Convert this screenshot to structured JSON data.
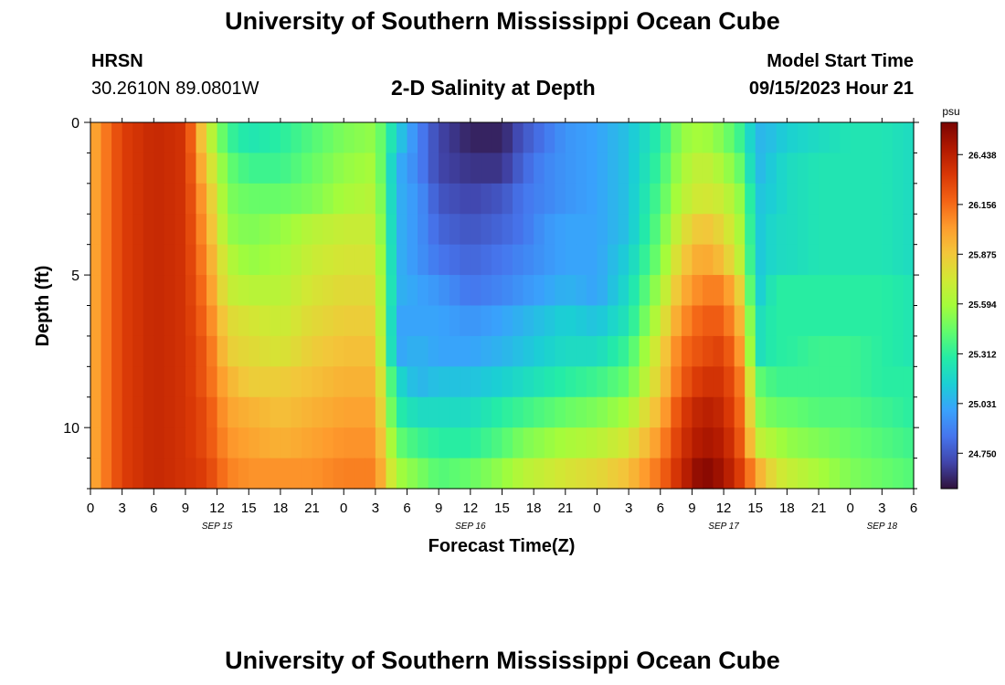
{
  "header": {
    "title": "University of Southern Mississippi Ocean Cube",
    "station": "HRSN",
    "coords": "30.2610N  89.0801W",
    "subtitle": "2-D Salinity at Depth",
    "model_start_label": "Model Start Time",
    "model_start_value": "09/15/2023 Hour 21"
  },
  "footer": {
    "title": "University of Southern Mississippi Ocean Cube"
  },
  "chart_data": {
    "type": "heatmap",
    "title": "2-D Salinity at Depth",
    "xlabel": "Forecast Time(Z)",
    "ylabel": "Depth (ft)",
    "x_range_hours": [
      0,
      78
    ],
    "y_range_ft": [
      0,
      12
    ],
    "x_ticks": [
      "0",
      "3",
      "6",
      "9",
      "12",
      "15",
      "18",
      "21",
      "0",
      "3",
      "6",
      "9",
      "12",
      "15",
      "18",
      "21",
      "0",
      "3",
      "6",
      "9",
      "12",
      "15",
      "18",
      "21",
      "0",
      "3",
      "6"
    ],
    "y_ticks": [
      {
        "label": "0",
        "value": 0
      },
      {
        "label": "5",
        "value": 5
      },
      {
        "label": "10",
        "value": 10
      }
    ],
    "date_labels": [
      {
        "label": "SEP 15",
        "hour": 12
      },
      {
        "label": "SEP 16",
        "hour": 36
      },
      {
        "label": "SEP 17",
        "hour": 60
      },
      {
        "label": "SEP 18",
        "hour": 75
      }
    ],
    "colorbar": {
      "unit": "psu",
      "min": 24.55,
      "max": 26.62,
      "ticks": [
        "26.438",
        "26.156",
        "25.875",
        "25.594",
        "25.312",
        "25.031",
        "24.750"
      ]
    },
    "colors": {
      "scale": [
        "#30123b",
        "#4145ab",
        "#4675ed",
        "#39a2fc",
        "#1bcfd4",
        "#24eca6",
        "#61fc6c",
        "#a4fc3b",
        "#d1e834",
        "#f3c63a",
        "#fe9b2d",
        "#f36315",
        "#d93806",
        "#b11901",
        "#7a0402"
      ]
    },
    "depth_levels_ft": [
      0,
      1,
      2,
      3,
      4,
      5,
      6,
      7,
      8,
      9,
      10,
      11
    ],
    "anchor_hours": [
      0,
      3,
      6,
      9,
      11,
      13,
      15,
      18,
      21,
      24,
      27,
      29,
      31,
      33,
      36,
      39,
      41,
      43,
      45,
      48,
      51,
      54,
      56,
      58,
      60,
      62,
      63,
      65,
      66,
      69,
      72,
      75,
      78
    ],
    "anchor_values": [
      [
        25.95,
        26.3,
        26.4,
        26.35,
        25.75,
        25.35,
        25.25,
        25.3,
        25.4,
        25.5,
        25.55,
        25.15,
        24.9,
        24.7,
        24.6,
        24.6,
        24.75,
        24.85,
        24.95,
        25.0,
        25.1,
        25.3,
        25.55,
        25.6,
        25.5,
        25.3,
        25.05,
        25.1,
        25.15,
        25.2,
        25.25,
        25.25,
        25.2
      ],
      [
        25.95,
        26.3,
        26.4,
        26.35,
        25.85,
        25.45,
        25.35,
        25.35,
        25.45,
        25.55,
        25.6,
        25.05,
        24.9,
        24.7,
        24.65,
        24.65,
        24.8,
        24.9,
        24.95,
        25.0,
        25.1,
        25.35,
        25.6,
        25.7,
        25.6,
        25.4,
        25.05,
        25.15,
        25.2,
        25.25,
        25.25,
        25.25,
        25.2
      ],
      [
        25.95,
        26.3,
        26.4,
        26.35,
        25.95,
        25.5,
        25.45,
        25.45,
        25.5,
        25.6,
        25.65,
        25.05,
        24.95,
        24.75,
        24.7,
        24.75,
        24.85,
        24.9,
        24.95,
        25.0,
        25.1,
        25.4,
        25.65,
        25.75,
        25.7,
        25.5,
        25.1,
        25.15,
        25.2,
        25.25,
        25.25,
        25.25,
        25.2
      ],
      [
        25.95,
        26.3,
        26.4,
        26.35,
        26.0,
        25.55,
        25.5,
        25.55,
        25.65,
        25.7,
        25.7,
        25.05,
        24.95,
        24.8,
        24.75,
        24.8,
        24.85,
        24.95,
        25.0,
        25.0,
        25.1,
        25.45,
        25.75,
        25.9,
        25.8,
        25.55,
        25.1,
        25.2,
        25.2,
        25.25,
        25.25,
        25.25,
        25.2
      ],
      [
        25.95,
        26.3,
        26.4,
        26.35,
        26.05,
        25.65,
        25.55,
        25.6,
        25.7,
        25.75,
        25.75,
        25.05,
        24.95,
        24.85,
        24.8,
        24.85,
        24.9,
        24.95,
        25.0,
        25.0,
        25.15,
        25.5,
        25.85,
        26.0,
        25.9,
        25.6,
        25.1,
        25.2,
        25.2,
        25.25,
        25.25,
        25.25,
        25.2
      ],
      [
        25.95,
        26.3,
        26.4,
        26.35,
        26.1,
        25.7,
        25.65,
        25.65,
        25.75,
        25.8,
        25.8,
        25.05,
        25.0,
        24.95,
        24.85,
        24.9,
        24.95,
        25.0,
        25.05,
        25.0,
        25.2,
        25.6,
        25.95,
        26.1,
        26.1,
        25.75,
        25.1,
        25.3,
        25.3,
        25.3,
        25.3,
        25.3,
        25.25
      ],
      [
        25.95,
        26.3,
        26.4,
        26.35,
        26.15,
        25.8,
        25.75,
        25.7,
        25.8,
        25.85,
        25.85,
        25.0,
        25.0,
        25.0,
        24.95,
        25.0,
        25.05,
        25.1,
        25.15,
        25.1,
        25.25,
        25.7,
        26.05,
        26.2,
        26.2,
        25.85,
        25.2,
        25.3,
        25.3,
        25.3,
        25.3,
        25.3,
        25.25
      ],
      [
        25.95,
        26.3,
        26.4,
        26.35,
        26.2,
        25.85,
        25.8,
        25.75,
        25.85,
        25.9,
        25.9,
        25.0,
        25.05,
        25.0,
        25.0,
        25.05,
        25.1,
        25.15,
        25.2,
        25.2,
        25.35,
        25.8,
        26.15,
        26.25,
        26.3,
        25.95,
        25.2,
        25.3,
        25.3,
        25.35,
        25.35,
        25.3,
        25.25
      ],
      [
        25.95,
        26.3,
        26.4,
        26.35,
        26.2,
        25.95,
        25.85,
        25.85,
        25.9,
        25.95,
        25.95,
        25.2,
        25.05,
        25.1,
        25.1,
        25.15,
        25.2,
        25.25,
        25.3,
        25.35,
        25.45,
        25.85,
        26.2,
        26.35,
        26.35,
        26.05,
        25.45,
        25.35,
        25.35,
        25.35,
        25.35,
        25.3,
        25.3
      ],
      [
        25.95,
        26.3,
        26.4,
        26.35,
        26.25,
        26.0,
        25.95,
        25.9,
        25.95,
        26.0,
        26.0,
        25.3,
        25.2,
        25.2,
        25.2,
        25.3,
        25.35,
        25.4,
        25.45,
        25.5,
        25.6,
        25.95,
        26.3,
        26.45,
        26.4,
        26.1,
        25.55,
        25.45,
        25.45,
        25.4,
        25.4,
        25.35,
        25.3
      ],
      [
        25.95,
        26.3,
        26.4,
        26.35,
        26.25,
        26.05,
        26.0,
        25.95,
        26.0,
        26.05,
        26.05,
        25.45,
        25.35,
        25.3,
        25.3,
        25.4,
        25.5,
        25.55,
        25.6,
        25.65,
        25.75,
        26.05,
        26.35,
        26.5,
        26.45,
        26.15,
        25.7,
        25.6,
        25.55,
        25.5,
        25.45,
        25.4,
        25.35
      ],
      [
        25.95,
        26.3,
        26.4,
        26.35,
        26.3,
        26.1,
        26.05,
        26.05,
        26.05,
        26.1,
        26.1,
        25.6,
        25.5,
        25.4,
        25.45,
        25.55,
        25.65,
        25.7,
        25.75,
        25.8,
        25.9,
        26.15,
        26.4,
        26.6,
        26.5,
        26.25,
        26.0,
        25.75,
        25.7,
        25.6,
        25.5,
        25.45,
        25.4
      ]
    ]
  }
}
